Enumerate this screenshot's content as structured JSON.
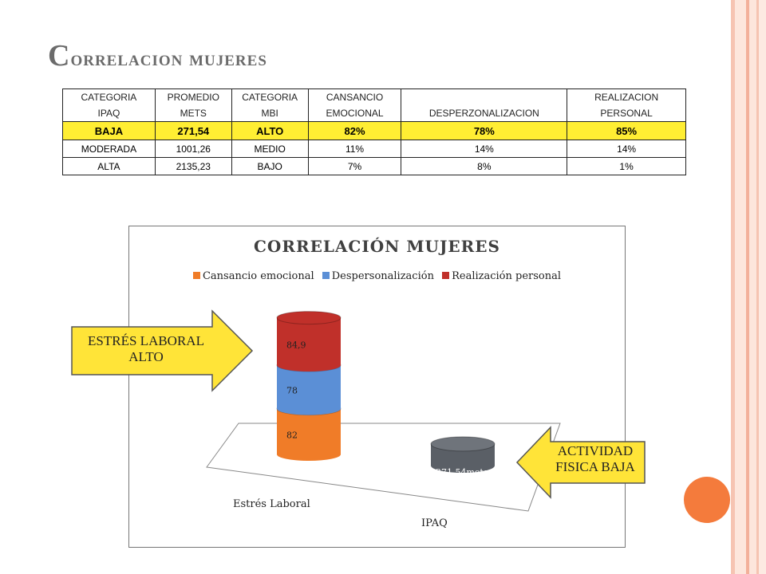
{
  "slide": {
    "title_cap": "C",
    "title_rest": "orrelacion mujeres"
  },
  "table": {
    "headers": [
      [
        "CATEGORIA",
        "IPAQ"
      ],
      [
        "PROMEDIO",
        "METS"
      ],
      [
        "CATEGORIA",
        "MBI"
      ],
      [
        "CANSANCIO",
        "EMOCIONAL"
      ],
      [
        "",
        "DESPERZONALIZACION"
      ],
      [
        "REALIZACION",
        "PERSONAL"
      ]
    ],
    "rows": [
      [
        "BAJA",
        "271,54",
        "ALTO",
        "82%",
        "78%",
        "85%"
      ],
      [
        "MODERADA",
        "1001,26",
        "MEDIO",
        "11%",
        "14%",
        "14%"
      ],
      [
        "ALTA",
        "2135,23",
        "BAJO",
        "7%",
        "8%",
        "1%"
      ]
    ]
  },
  "chart_data": {
    "type": "bar",
    "title": "CORRELACIÓN MUJERES",
    "categories": [
      "Estrés Laboral",
      "IPAQ"
    ],
    "series": [
      {
        "name": "Cansancio emocional",
        "values": [
          82,
          null
        ],
        "labels": [
          "82",
          ""
        ]
      },
      {
        "name": "Despersonalización",
        "values": [
          78,
          null
        ],
        "labels": [
          "78",
          ""
        ]
      },
      {
        "name": "Realización personal",
        "values": [
          84.9,
          null
        ],
        "labels": [
          "84,9",
          ""
        ]
      },
      {
        "name": "",
        "values": [
          null,
          271.54
        ],
        "labels": [
          "",
          "271,54mets"
        ]
      }
    ],
    "legend_position": "top",
    "stacked": true,
    "three_d": true,
    "colors": {
      "cansancio": "#f07c28",
      "despersonalizacion": "#5b8fd6",
      "realizacion": "#c0302a",
      "ipaq": "#5a5f66"
    }
  },
  "callouts": {
    "left": {
      "line1": "ESTRÉS LABORAL",
      "line2": "ALTO",
      "color": "#ffe438"
    },
    "right": {
      "line1": "ACTIVIDAD",
      "line2": "FISICA BAJA",
      "color": "#ffe438"
    }
  },
  "colors": {
    "stripe_dark": "#f4b8a3",
    "stripe_light": "#fde3d8",
    "accent_dot": "#f47b3c",
    "highlight_row": "#ffee33"
  }
}
